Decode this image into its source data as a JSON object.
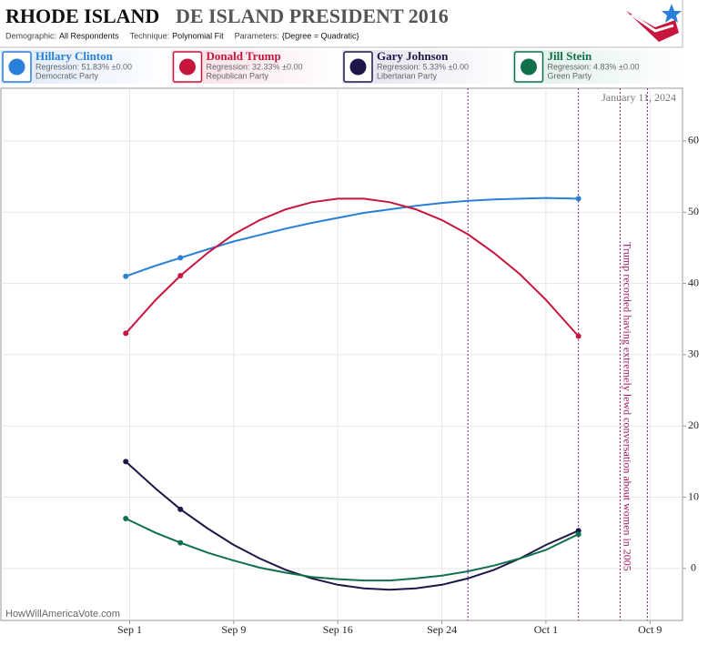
{
  "chart_data": {
    "type": "line",
    "title": "RHODE ISLAND",
    "title_suffix": "DE ISLAND PRESIDENT 2016",
    "meta": [
      {
        "label": "Demographic:",
        "value": "All Respondents"
      },
      {
        "label": "Technique:",
        "value": "Polynomial Fit"
      },
      {
        "label": "Parameters:",
        "value": "{Degree = Quadratic}"
      }
    ],
    "date": "January 11, 2024",
    "source": "HowWillAmericaVote.com",
    "xlim": [
      -9.9,
      42.5
    ],
    "xticks": [
      {
        "value": 0,
        "label": "Sep 1"
      },
      {
        "value": 8,
        "label": "Sep 9"
      },
      {
        "value": 16,
        "label": "Sep 16"
      },
      {
        "value": 24,
        "label": "Sep 24"
      },
      {
        "value": 32,
        "label": "Oct 1"
      },
      {
        "value": 40,
        "label": "Oct 9"
      }
    ],
    "ylim": [
      -7.3,
      67.4
    ],
    "yticks": [
      0,
      10,
      20,
      30,
      40,
      50,
      60
    ],
    "grid": true,
    "series": [
      {
        "name": "Hillary Clinton",
        "regression": "Regression: 51.83% ±0.00",
        "party": "Democratic Party",
        "color": "#2a7fd8",
        "x": [
          -0.3,
          2,
          3.9,
          6,
          8,
          10,
          12,
          14,
          16,
          18,
          20,
          22,
          24,
          26,
          28,
          30,
          32,
          34.5
        ],
        "values": [
          41.0,
          42.5,
          43.6,
          44.8,
          45.9,
          46.8,
          47.7,
          48.5,
          49.2,
          49.9,
          50.4,
          50.9,
          51.3,
          51.6,
          51.8,
          51.9,
          52.0,
          51.9
        ],
        "poll_x": [
          -0.3,
          3.9,
          34.5
        ],
        "poll_values": [
          41.0,
          43.6,
          51.9
        ]
      },
      {
        "name": "Donald Trump",
        "regression": "Regression: 32.33% ±0.00",
        "party": "Republican Party",
        "color": "#c8153e",
        "x": [
          -0.3,
          2,
          3.9,
          6,
          8,
          10,
          12,
          14,
          16,
          18,
          20,
          22,
          24,
          26,
          28,
          30,
          32,
          34.5
        ],
        "values": [
          33.0,
          37.7,
          41.1,
          44.3,
          46.9,
          48.9,
          50.4,
          51.4,
          51.9,
          51.9,
          51.4,
          50.4,
          48.9,
          46.9,
          44.3,
          41.3,
          37.7,
          32.6
        ],
        "poll_x": [
          -0.3,
          3.9,
          34.5
        ],
        "poll_values": [
          33.0,
          41.1,
          32.6
        ]
      },
      {
        "name": "Gary Johnson",
        "regression": "Regression: 5.33% ±0.00",
        "party": "Libertarian Party",
        "color": "#1c1748",
        "x": [
          -0.3,
          2,
          3.9,
          6,
          8,
          10,
          12,
          14,
          16,
          18,
          20,
          22,
          24,
          26,
          28,
          30,
          32,
          34.5
        ],
        "values": [
          15.0,
          11.2,
          8.3,
          5.6,
          3.3,
          1.4,
          -0.2,
          -1.4,
          -2.3,
          -2.8,
          -3.0,
          -2.8,
          -2.3,
          -1.4,
          -0.2,
          1.4,
          3.3,
          5.3
        ],
        "poll_x": [
          -0.3,
          3.9,
          34.5
        ],
        "poll_values": [
          15.0,
          8.3,
          5.3
        ]
      },
      {
        "name": "Jill Stein",
        "regression": "Regression: 4.83% ±0.00",
        "party": "Green Party",
        "color": "#11704c",
        "x": [
          -0.3,
          2,
          3.9,
          6,
          8,
          10,
          12,
          14,
          16,
          18,
          20,
          22,
          24,
          26,
          28,
          30,
          32,
          34.5
        ],
        "values": [
          7.0,
          5.0,
          3.6,
          2.2,
          1.1,
          0.1,
          -0.6,
          -1.2,
          -1.5,
          -1.7,
          -1.7,
          -1.4,
          -1.0,
          -0.4,
          0.4,
          1.4,
          2.6,
          4.8
        ],
        "poll_x": [
          -0.3,
          3.9,
          34.5
        ],
        "poll_values": [
          7.0,
          3.6,
          4.8
        ]
      }
    ],
    "event_lines": {
      "color": "#7a2a78",
      "x": [
        26,
        34.5,
        39.8
      ]
    },
    "annotations": [
      {
        "text": "Trump recorded having extremely lewd conversation about women in 2005",
        "x": 37.7,
        "color": "#a3145a"
      }
    ]
  }
}
